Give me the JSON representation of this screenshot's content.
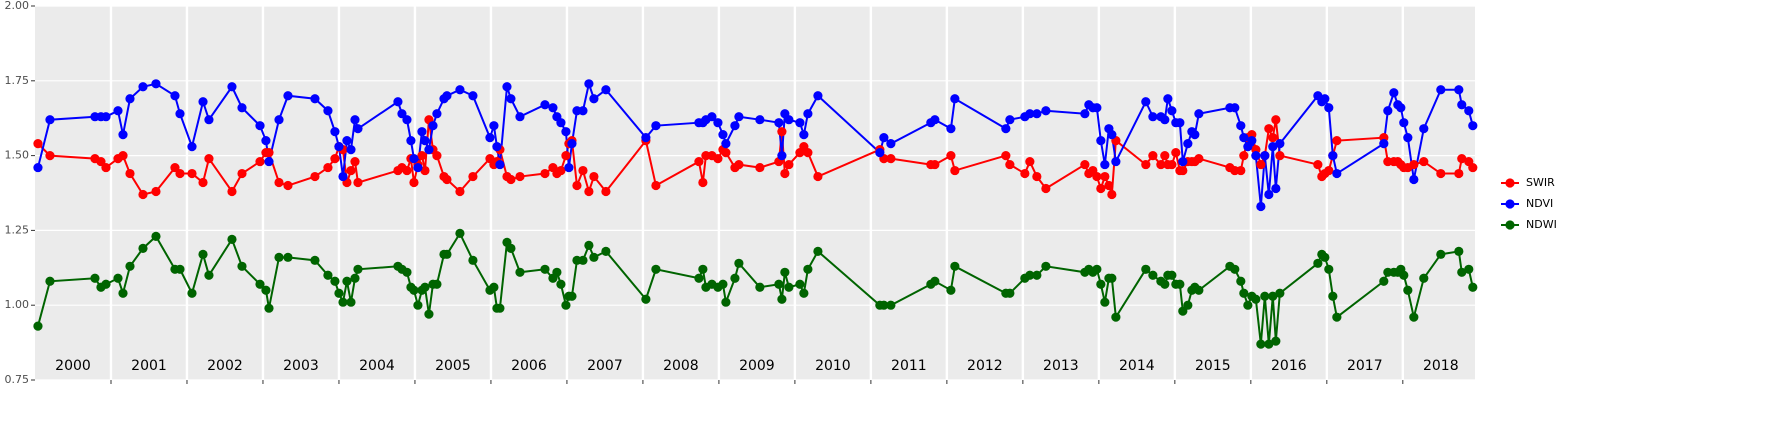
{
  "chart_data": {
    "type": "line",
    "x": [
      2000.039,
      2000.197,
      2000.789,
      2000.868,
      2000.934,
      2001.092,
      2001.158,
      2001.25,
      2001.421,
      2001.592,
      2001.842,
      2001.908,
      2002.066,
      2002.211,
      2002.289,
      2002.592,
      2002.724,
      2002.961,
      2003.039,
      2003.079,
      2003.211,
      2003.329,
      2003.684,
      2003.855,
      2003.947,
      2004.0,
      2004.053,
      2004.105,
      2004.158,
      2004.211,
      2004.25,
      2004.776,
      2004.829,
      2004.895,
      2004.947,
      2004.987,
      2005.039,
      2005.092,
      2005.132,
      2005.184,
      2005.237,
      2005.289,
      2005.382,
      2005.421,
      2005.592,
      2005.763,
      2005.987,
      2006.039,
      2006.079,
      2006.118,
      2006.211,
      2006.263,
      2006.382,
      2006.711,
      2006.816,
      2006.868,
      2006.921,
      2006.987,
      2007.026,
      2007.066,
      2007.132,
      2007.211,
      2007.289,
      2007.355,
      2007.513,
      2008.039,
      2008.171,
      2008.737,
      2008.789,
      2008.829,
      2008.908,
      2008.987,
      2009.053,
      2009.092,
      2009.211,
      2009.263,
      2009.539,
      2009.789,
      2009.829,
      2009.868,
      2009.921,
      2010.066,
      2010.118,
      2010.171,
      2010.303,
      2011.118,
      2011.171,
      2011.263,
      2011.789,
      2011.842,
      2012.053,
      2012.105,
      2012.776,
      2012.829,
      2013.026,
      2013.092,
      2013.184,
      2013.303,
      2013.816,
      2013.868,
      2013.921,
      2013.974,
      2014.026,
      2014.079,
      2014.132,
      2014.171,
      2014.224,
      2014.618,
      2014.711,
      2014.816,
      2014.868,
      2014.908,
      2014.961,
      2015.013,
      2015.066,
      2015.105,
      2015.171,
      2015.224,
      2015.263,
      2015.316,
      2015.724,
      2015.789,
      2015.868,
      2015.908,
      2015.961,
      2016.013,
      2016.066,
      2016.132,
      2016.184,
      2016.237,
      2016.289,
      2016.329,
      2016.382,
      2016.882,
      2016.934,
      2016.974,
      2017.026,
      2017.079,
      2017.132,
      2017.75,
      2017.803,
      2017.882,
      2017.934,
      2017.974,
      2018.013,
      2018.066,
      2018.145,
      2018.276,
      2018.5,
      2018.737,
      2018.776,
      2018.868,
      2018.921
    ],
    "series": [
      {
        "name": "SWIR",
        "color": "#ff0000",
        "values": [
          1.54,
          1.5,
          1.49,
          1.48,
          1.46,
          1.49,
          1.5,
          1.44,
          1.37,
          1.38,
          1.46,
          1.44,
          1.44,
          1.41,
          1.49,
          1.38,
          1.44,
          1.48,
          1.51,
          1.51,
          1.41,
          1.4,
          1.43,
          1.46,
          1.49,
          1.53,
          1.52,
          1.41,
          1.45,
          1.48,
          1.41,
          1.45,
          1.46,
          1.45,
          1.49,
          1.41,
          1.47,
          1.5,
          1.45,
          1.62,
          1.52,
          1.5,
          1.43,
          1.42,
          1.38,
          1.43,
          1.49,
          1.47,
          1.48,
          1.52,
          1.43,
          1.42,
          1.43,
          1.44,
          1.46,
          1.44,
          1.45,
          1.5,
          1.54,
          1.55,
          1.4,
          1.45,
          1.38,
          1.43,
          1.38,
          1.55,
          1.4,
          1.48,
          1.41,
          1.5,
          1.5,
          1.49,
          1.52,
          1.51,
          1.46,
          1.47,
          1.46,
          1.48,
          1.58,
          1.44,
          1.47,
          1.51,
          1.53,
          1.51,
          1.43,
          1.52,
          1.49,
          1.49,
          1.47,
          1.47,
          1.5,
          1.45,
          1.5,
          1.47,
          1.44,
          1.48,
          1.43,
          1.39,
          1.47,
          1.44,
          1.45,
          1.43,
          1.39,
          1.43,
          1.4,
          1.37,
          1.55,
          1.47,
          1.5,
          1.47,
          1.5,
          1.47,
          1.47,
          1.51,
          1.45,
          1.45,
          1.48,
          1.48,
          1.48,
          1.49,
          1.46,
          1.45,
          1.45,
          1.5,
          1.56,
          1.57,
          1.52,
          1.47,
          1.5,
          1.59,
          1.56,
          1.62,
          1.5,
          1.47,
          1.43,
          1.44,
          1.45,
          1.5,
          1.55,
          1.56,
          1.48,
          1.48,
          1.48,
          1.47,
          1.46,
          1.46,
          1.47,
          1.48,
          1.44,
          1.44,
          1.49,
          1.48,
          1.46
        ]
      },
      {
        "name": "NDVI",
        "color": "#0000ff",
        "values": [
          1.46,
          1.62,
          1.63,
          1.63,
          1.63,
          1.65,
          1.57,
          1.69,
          1.73,
          1.74,
          1.7,
          1.64,
          1.53,
          1.68,
          1.62,
          1.73,
          1.66,
          1.6,
          1.55,
          1.48,
          1.62,
          1.7,
          1.69,
          1.65,
          1.58,
          1.53,
          1.43,
          1.55,
          1.52,
          1.62,
          1.59,
          1.68,
          1.64,
          1.62,
          1.55,
          1.49,
          1.46,
          1.58,
          1.55,
          1.52,
          1.6,
          1.64,
          1.69,
          1.7,
          1.72,
          1.7,
          1.56,
          1.6,
          1.53,
          1.47,
          1.73,
          1.69,
          1.63,
          1.67,
          1.66,
          1.63,
          1.61,
          1.58,
          1.46,
          1.54,
          1.65,
          1.65,
          1.74,
          1.69,
          1.72,
          1.56,
          1.6,
          1.61,
          1.61,
          1.62,
          1.63,
          1.61,
          1.57,
          1.54,
          1.6,
          1.63,
          1.62,
          1.61,
          1.5,
          1.64,
          1.62,
          1.61,
          1.57,
          1.64,
          1.7,
          1.51,
          1.56,
          1.54,
          1.61,
          1.62,
          1.59,
          1.69,
          1.59,
          1.62,
          1.63,
          1.64,
          1.64,
          1.65,
          1.64,
          1.67,
          1.66,
          1.66,
          1.55,
          1.47,
          1.59,
          1.57,
          1.48,
          1.68,
          1.63,
          1.63,
          1.62,
          1.69,
          1.65,
          1.61,
          1.61,
          1.48,
          1.54,
          1.58,
          1.57,
          1.64,
          1.66,
          1.66,
          1.6,
          1.56,
          1.53,
          1.55,
          1.5,
          1.33,
          1.5,
          1.37,
          1.53,
          1.39,
          1.54,
          1.7,
          1.68,
          1.69,
          1.66,
          1.5,
          1.44,
          1.54,
          1.65,
          1.71,
          1.67,
          1.66,
          1.61,
          1.56,
          1.42,
          1.59,
          1.72,
          1.72,
          1.67,
          1.65,
          1.6
        ]
      },
      {
        "name": "NDWI",
        "color": "#006400",
        "values": [
          0.93,
          1.08,
          1.09,
          1.06,
          1.07,
          1.09,
          1.04,
          1.13,
          1.19,
          1.23,
          1.12,
          1.12,
          1.04,
          1.17,
          1.1,
          1.22,
          1.13,
          1.07,
          1.05,
          0.99,
          1.16,
          1.16,
          1.15,
          1.1,
          1.08,
          1.04,
          1.01,
          1.08,
          1.01,
          1.09,
          1.12,
          1.13,
          1.12,
          1.11,
          1.06,
          1.05,
          1.0,
          1.05,
          1.06,
          0.97,
          1.07,
          1.07,
          1.17,
          1.17,
          1.24,
          1.15,
          1.05,
          1.06,
          0.99,
          0.99,
          1.21,
          1.19,
          1.11,
          1.12,
          1.09,
          1.11,
          1.07,
          1.0,
          1.03,
          1.03,
          1.15,
          1.15,
          1.2,
          1.16,
          1.18,
          1.02,
          1.12,
          1.09,
          1.12,
          1.06,
          1.07,
          1.06,
          1.07,
          1.01,
          1.09,
          1.14,
          1.06,
          1.07,
          1.02,
          1.11,
          1.06,
          1.07,
          1.04,
          1.12,
          1.18,
          1.0,
          1.0,
          1.0,
          1.07,
          1.08,
          1.05,
          1.13,
          1.04,
          1.04,
          1.09,
          1.1,
          1.1,
          1.13,
          1.11,
          1.12,
          1.11,
          1.12,
          1.07,
          1.01,
          1.09,
          1.09,
          0.96,
          1.12,
          1.1,
          1.08,
          1.07,
          1.1,
          1.1,
          1.07,
          1.07,
          0.98,
          1.0,
          1.05,
          1.06,
          1.05,
          1.13,
          1.12,
          1.08,
          1.04,
          1.0,
          1.03,
          1.02,
          0.87,
          1.03,
          0.87,
          1.03,
          0.88,
          1.04,
          1.14,
          1.17,
          1.16,
          1.12,
          1.03,
          0.96,
          1.08,
          1.11,
          1.11,
          1.11,
          1.12,
          1.1,
          1.05,
          0.96,
          1.09,
          1.17,
          1.18,
          1.11,
          1.12,
          1.06
        ]
      }
    ],
    "xlim": [
      2000,
      2018.95
    ],
    "xticks": [
      2001,
      2002,
      2003,
      2004,
      2005,
      2006,
      2007,
      2008,
      2009,
      2010,
      2011,
      2012,
      2013,
      2014,
      2015,
      2016,
      2017,
      2018
    ],
    "ylim": [
      0.75,
      2.0
    ],
    "yticks": [
      0.75,
      {
        "value": 1.0,
        "label": "1.00"
      },
      1.25,
      {
        "value": 1.5,
        "label": "1.50"
      },
      1.75,
      {
        "value": 2.0,
        "label": "2.00"
      }
    ],
    "annotations": [
      {
        "label": "2000",
        "x": 2000.5
      },
      {
        "label": "2001",
        "x": 2001.5
      },
      {
        "label": "2002",
        "x": 2002.5
      },
      {
        "label": "2003",
        "x": 2003.5
      },
      {
        "label": "2004",
        "x": 2004.5
      },
      {
        "label": "2005",
        "x": 2005.5
      },
      {
        "label": "2006",
        "x": 2006.5
      },
      {
        "label": "2007",
        "x": 2007.5
      },
      {
        "label": "2008",
        "x": 2008.5
      },
      {
        "label": "2009",
        "x": 2009.5
      },
      {
        "label": "2010",
        "x": 2010.5
      },
      {
        "label": "2011",
        "x": 2011.5
      },
      {
        "label": "2012",
        "x": 2012.5
      },
      {
        "label": "2013",
        "x": 2013.5
      },
      {
        "label": "2014",
        "x": 2014.5
      },
      {
        "label": "2015",
        "x": 2015.5
      },
      {
        "label": "2016",
        "x": 2016.5
      },
      {
        "label": "2017",
        "x": 2017.5
      },
      {
        "label": "2018",
        "x": 2018.5
      }
    ],
    "grid": true,
    "legend": "right"
  }
}
